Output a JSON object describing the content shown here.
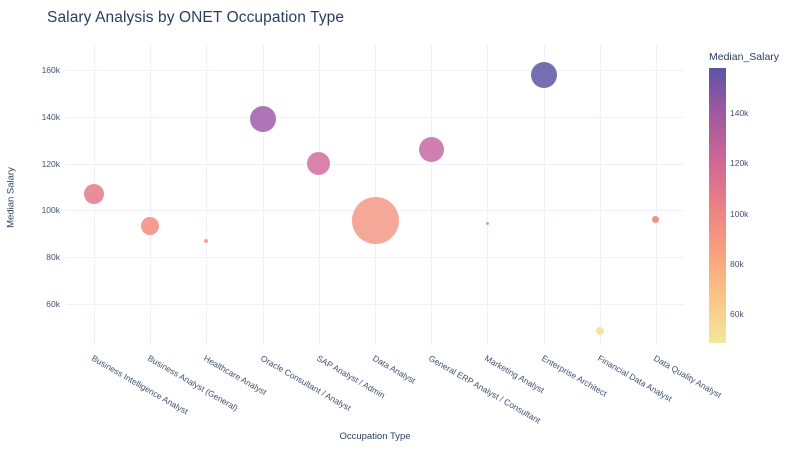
{
  "page": {
    "title": "Salary Analysis by ONET Occupation Type"
  },
  "chart_data": {
    "type": "scatter",
    "subtype": "bubble",
    "title": "Salary Analysis by ONET Occupation Type",
    "xlabel": "Occupation Type",
    "ylabel": "Median Salary",
    "grid": true,
    "x_tick_angle_deg": 30,
    "y_axis": {
      "tick_values_k": [
        160,
        140,
        120,
        100,
        80,
        60
      ],
      "tick_labels": [
        "160k",
        "140k",
        "120k",
        "100k",
        "80k",
        "60k"
      ]
    },
    "categories": [
      "Business Intelligence Analyst",
      "Business Analyst (General)",
      "Healthcare Analyst",
      "Oracle Consultant / Analyst",
      "SAP Analyst / Admin",
      "Data Analyst",
      "General ERP Analyst / Consultant",
      "Marketing Analyst",
      "Enterprise Architect",
      "Financial Data Analyst",
      "Data Quality Analyst"
    ],
    "points": [
      {
        "category": "Business Intelligence Analyst",
        "median_salary_k": 107,
        "color": "#e98d9a",
        "radius_px": 10
      },
      {
        "category": "Business Analyst (General)",
        "median_salary_k": 93.5,
        "color": "#f29d90",
        "radius_px": 9
      },
      {
        "category": "Healthcare Analyst",
        "median_salary_k": 87,
        "color": "#f6a292",
        "radius_px": 2
      },
      {
        "category": "Oracle Consultant / Analyst",
        "median_salary_k": 139,
        "color": "#ae74b5",
        "radius_px": 13
      },
      {
        "category": "SAP Analyst / Admin",
        "median_salary_k": 120,
        "color": "#db82ab",
        "radius_px": 11.5
      },
      {
        "category": "Data Analyst",
        "median_salary_k": 95.5,
        "color": "#f5a898",
        "radius_px": 23.5
      },
      {
        "category": "General ERP Analyst / Consultant",
        "median_salary_k": 126,
        "color": "#cf7fb0",
        "radius_px": 12.5
      },
      {
        "category": "Marketing Analyst",
        "median_salary_k": 94.5,
        "color": "#f0958f",
        "radius_px": 1.5
      },
      {
        "category": "Enterprise Architect",
        "median_salary_k": 158,
        "color": "#7470b0",
        "radius_px": 13
      },
      {
        "category": "Financial Data Analyst",
        "median_salary_k": 48.5,
        "color": "#f5e3a0",
        "radius_px": 4
      },
      {
        "category": "Data Quality Analyst",
        "median_salary_k": 96,
        "color": "#f0928a",
        "radius_px": 3.5
      }
    ],
    "colorbar": {
      "title": "Median_Salary",
      "tick_values_k": [
        140,
        120,
        100,
        80,
        60
      ],
      "tick_labels": [
        "140k",
        "120k",
        "100k",
        "80k",
        "60k"
      ],
      "min_k": 48.5,
      "max_k": 158,
      "colorscale_bottom_to_top": [
        "#f3e79b",
        "#fac484",
        "#f8a07e",
        "#eb7f86",
        "#ce6693",
        "#a059a0",
        "#5c53a5"
      ]
    },
    "colors": {
      "text": "#2a3f5f",
      "grid": "#eef1f7",
      "background": "#ffffff"
    }
  }
}
